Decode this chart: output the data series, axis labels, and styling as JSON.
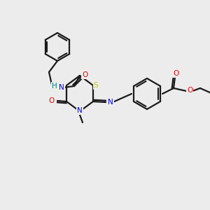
{
  "background_color": "#ececec",
  "bond_color": "#1a1a1a",
  "atom_colors": {
    "S": "#cccc00",
    "N": "#0000ee",
    "O": "#ee0000",
    "H": "#008080",
    "C": "#1a1a1a"
  },
  "figsize": [
    3.0,
    3.0
  ],
  "dpi": 100
}
